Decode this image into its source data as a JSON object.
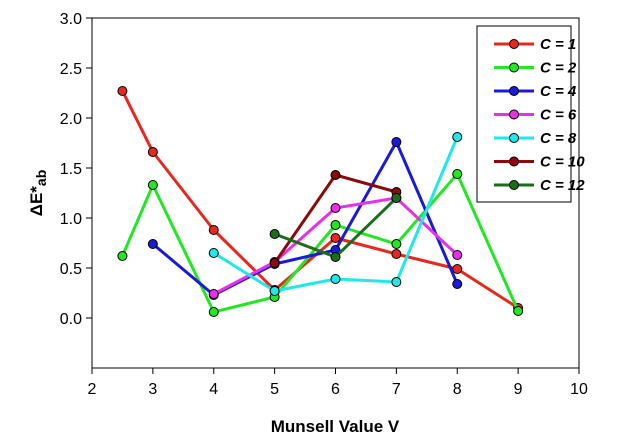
{
  "chart_data": {
    "type": "line",
    "xlabel": "Munsell Value V",
    "ylabel_main": "ΔE*",
    "ylabel_sub": "ab",
    "xlim": [
      2,
      10
    ],
    "ylim": [
      -0.5,
      3.0
    ],
    "xticks": [
      "2",
      "3",
      "4",
      "5",
      "6",
      "7",
      "8",
      "9",
      "10"
    ],
    "yticks": [
      "0.0",
      "0.5",
      "1.0",
      "1.5",
      "2.0",
      "2.5",
      "3.0"
    ],
    "grid": false,
    "legend_position": "top-right",
    "series": [
      {
        "name": "C = 1",
        "color": "#e8281e",
        "x": [
          2.5,
          3,
          4,
          5,
          6,
          7,
          8,
          9
        ],
        "y": [
          2.27,
          1.66,
          0.88,
          0.28,
          0.8,
          0.64,
          0.49,
          0.1
        ]
      },
      {
        "name": "C = 2",
        "color": "#22e822",
        "x": [
          2.5,
          3,
          4,
          5,
          6,
          7,
          8,
          9
        ],
        "y": [
          0.62,
          1.33,
          0.06,
          0.21,
          0.93,
          0.74,
          1.44,
          0.07
        ]
      },
      {
        "name": "C = 4",
        "color": "#1a1adc",
        "x": [
          3,
          4,
          5,
          6,
          7,
          8
        ],
        "y": [
          0.74,
          0.23,
          0.54,
          0.68,
          1.76,
          0.34
        ]
      },
      {
        "name": "C = 6",
        "color": "#e830e8",
        "x": [
          4,
          5,
          6,
          7,
          8
        ],
        "y": [
          0.24,
          0.56,
          1.1,
          1.2,
          0.63
        ]
      },
      {
        "name": "C = 8",
        "color": "#20e8e8",
        "x": [
          4,
          5,
          6,
          7,
          8
        ],
        "y": [
          0.65,
          0.27,
          0.39,
          0.36,
          1.81
        ]
      },
      {
        "name": "C = 10",
        "color": "#8b0a0a",
        "x": [
          5,
          6,
          7
        ],
        "y": [
          0.55,
          1.43,
          1.26
        ]
      },
      {
        "name": "C = 12",
        "color": "#1a6e1a",
        "x": [
          5,
          6,
          7
        ],
        "y": [
          0.84,
          0.61,
          1.2
        ]
      }
    ]
  }
}
